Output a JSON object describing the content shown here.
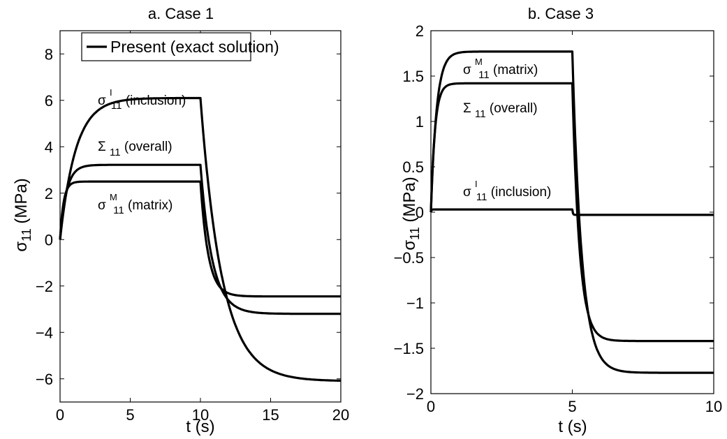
{
  "chart_data": [
    {
      "type": "line",
      "title": "a. Case 1",
      "xlabel": "t (s)",
      "ylabel": "σ11 (MPa)",
      "xlim": [
        0,
        20
      ],
      "ylim": [
        -7,
        9
      ],
      "xticks": [
        0,
        5,
        10,
        15,
        20
      ],
      "yticks": [
        -6,
        -4,
        -2,
        0,
        2,
        4,
        6,
        8
      ],
      "tick_labels_x": [
        "0",
        "5",
        "10",
        "15",
        "20"
      ],
      "tick_labels_y": [
        "−6",
        "−4",
        "−2",
        "0",
        "2",
        "4",
        "6",
        "8"
      ],
      "grid": false,
      "legend": {
        "position": "top",
        "entries": [
          "Present (exact solution)"
        ]
      },
      "series": [
        {
          "label": "σ11I (inclusion)",
          "plateau": 6.1,
          "final": -6.1,
          "rate": 0.9,
          "rate2": 0.65
        },
        {
          "label": "Σ11 (overall)",
          "plateau": 3.22,
          "final": -3.2,
          "rate": 2.2,
          "rate2": 1.2
        },
        {
          "label": "σ11M (matrix)",
          "plateau": 2.5,
          "final": -2.45,
          "rate": 4.0,
          "rate2": 1.8
        }
      ],
      "switch_time": 10,
      "annotations": [
        {
          "base": "σ",
          "sub": "11",
          "sup": "I",
          "rest": " (inclusion)"
        },
        {
          "base": "Σ",
          "sub": "11",
          "sup": "",
          "rest": " (overall)"
        },
        {
          "base": "σ",
          "sub": "11",
          "sup": "M",
          "rest": " (matrix)"
        }
      ]
    },
    {
      "type": "line",
      "title": "b. Case 3",
      "xlabel": "t (s)",
      "ylabel": "σ11 (MPa)",
      "xlim": [
        0,
        10
      ],
      "ylim": [
        -2,
        2
      ],
      "xticks": [
        0,
        5,
        10
      ],
      "yticks": [
        -2,
        -1.5,
        -1,
        -0.5,
        0,
        0.5,
        1,
        1.5,
        2
      ],
      "tick_labels_x": [
        "0",
        "5",
        "10"
      ],
      "tick_labels_y": [
        "−2",
        "−1.5",
        "−1",
        "−0.5",
        "0",
        "0.5",
        "1",
        "1.5",
        "2"
      ],
      "grid": false,
      "series": [
        {
          "label": "σ11M (matrix)",
          "plateau": 1.77,
          "final": -1.77,
          "rate": 5.0,
          "rate2": 3.0
        },
        {
          "label": "Σ11 (overall)",
          "plateau": 1.42,
          "final": -1.42,
          "rate": 7.0,
          "rate2": 4.0
        },
        {
          "label": "σ11I (inclusion)",
          "plateau": 0.03,
          "final": -0.03,
          "rate": 50,
          "rate2": 50
        }
      ],
      "switch_time": 5,
      "annotations": [
        {
          "base": "σ",
          "sub": "11",
          "sup": "M",
          "rest": " (matrix)"
        },
        {
          "base": "Σ",
          "sub": "11",
          "sup": "",
          "rest": " (overall)"
        },
        {
          "base": "σ",
          "sub": "11",
          "sup": "I",
          "rest": " (inclusion)"
        }
      ]
    }
  ]
}
